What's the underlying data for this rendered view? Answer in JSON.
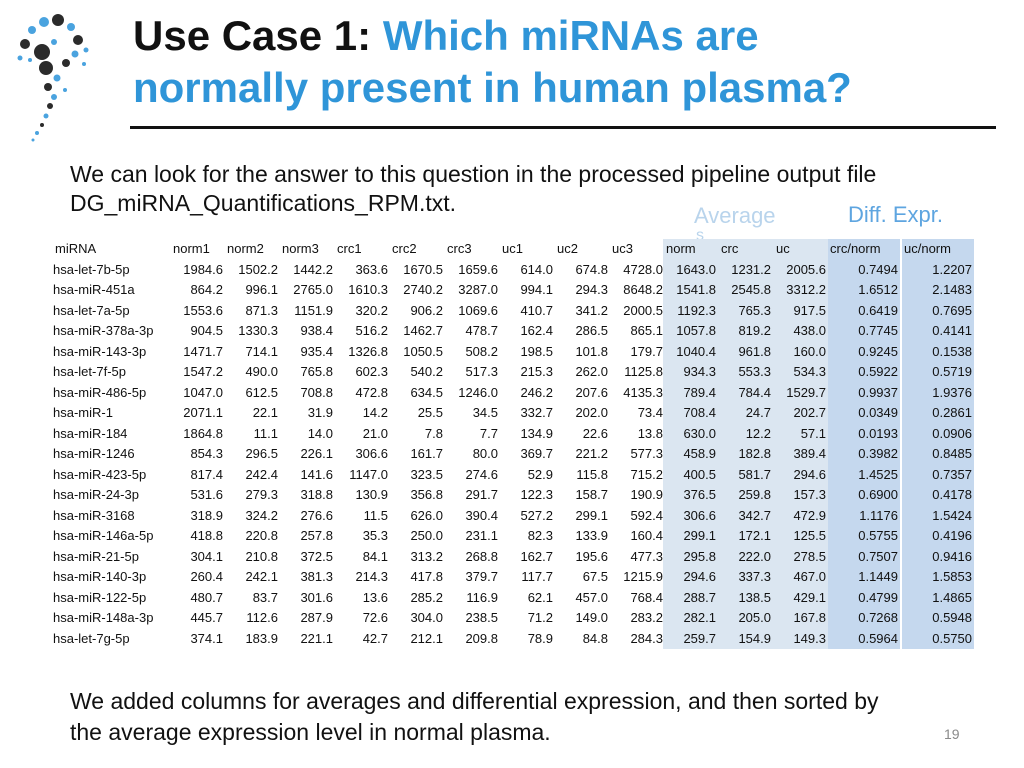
{
  "title": {
    "prefix": "Use Case 1:",
    "highlight_line1": "Which miRNAs are",
    "highlight_line2": "normally present in human plasma?"
  },
  "intro": {
    "line1": "We can look for the answer to this question in the processed pipeline output file",
    "line2": "DG_miRNA_Quantifications_RPM.txt."
  },
  "group_headers": {
    "average": "Average",
    "average_tail": "s",
    "diff": "Diff. Expr."
  },
  "table": {
    "headers": [
      "miRNA",
      "norm1",
      "norm2",
      "norm3",
      "crc1",
      "crc2",
      "crc3",
      "uc1",
      "uc2",
      "uc3",
      "norm",
      "crc",
      "uc",
      "crc/norm",
      "uc/norm"
    ],
    "rows": [
      [
        "hsa-let-7b-5p",
        "1984.6",
        "1502.2",
        "1442.2",
        "363.6",
        "1670.5",
        "1659.6",
        "614.0",
        "674.8",
        "4728.0",
        "1643.0",
        "1231.2",
        "2005.6",
        "0.7494",
        "1.2207"
      ],
      [
        "hsa-miR-451a",
        "864.2",
        "996.1",
        "2765.0",
        "1610.3",
        "2740.2",
        "3287.0",
        "994.1",
        "294.3",
        "8648.2",
        "1541.8",
        "2545.8",
        "3312.2",
        "1.6512",
        "2.1483"
      ],
      [
        "hsa-let-7a-5p",
        "1553.6",
        "871.3",
        "1151.9",
        "320.2",
        "906.2",
        "1069.6",
        "410.7",
        "341.2",
        "2000.5",
        "1192.3",
        "765.3",
        "917.5",
        "0.6419",
        "0.7695"
      ],
      [
        "hsa-miR-378a-3p",
        "904.5",
        "1330.3",
        "938.4",
        "516.2",
        "1462.7",
        "478.7",
        "162.4",
        "286.5",
        "865.1",
        "1057.8",
        "819.2",
        "438.0",
        "0.7745",
        "0.4141"
      ],
      [
        "hsa-miR-143-3p",
        "1471.7",
        "714.1",
        "935.4",
        "1326.8",
        "1050.5",
        "508.2",
        "198.5",
        "101.8",
        "179.7",
        "1040.4",
        "961.8",
        "160.0",
        "0.9245",
        "0.1538"
      ],
      [
        "hsa-let-7f-5p",
        "1547.2",
        "490.0",
        "765.8",
        "602.3",
        "540.2",
        "517.3",
        "215.3",
        "262.0",
        "1125.8",
        "934.3",
        "553.3",
        "534.3",
        "0.5922",
        "0.5719"
      ],
      [
        "hsa-miR-486-5p",
        "1047.0",
        "612.5",
        "708.8",
        "472.8",
        "634.5",
        "1246.0",
        "246.2",
        "207.6",
        "4135.3",
        "789.4",
        "784.4",
        "1529.7",
        "0.9937",
        "1.9376"
      ],
      [
        "hsa-miR-1",
        "2071.1",
        "22.1",
        "31.9",
        "14.2",
        "25.5",
        "34.5",
        "332.7",
        "202.0",
        "73.4",
        "708.4",
        "24.7",
        "202.7",
        "0.0349",
        "0.2861"
      ],
      [
        "hsa-miR-184",
        "1864.8",
        "11.1",
        "14.0",
        "21.0",
        "7.8",
        "7.7",
        "134.9",
        "22.6",
        "13.8",
        "630.0",
        "12.2",
        "57.1",
        "0.0193",
        "0.0906"
      ],
      [
        "hsa-miR-1246",
        "854.3",
        "296.5",
        "226.1",
        "306.6",
        "161.7",
        "80.0",
        "369.7",
        "221.2",
        "577.3",
        "458.9",
        "182.8",
        "389.4",
        "0.3982",
        "0.8485"
      ],
      [
        "hsa-miR-423-5p",
        "817.4",
        "242.4",
        "141.6",
        "1147.0",
        "323.5",
        "274.6",
        "52.9",
        "115.8",
        "715.2",
        "400.5",
        "581.7",
        "294.6",
        "1.4525",
        "0.7357"
      ],
      [
        "hsa-miR-24-3p",
        "531.6",
        "279.3",
        "318.8",
        "130.9",
        "356.8",
        "291.7",
        "122.3",
        "158.7",
        "190.9",
        "376.5",
        "259.8",
        "157.3",
        "0.6900",
        "0.4178"
      ],
      [
        "hsa-miR-3168",
        "318.9",
        "324.2",
        "276.6",
        "11.5",
        "626.0",
        "390.4",
        "527.2",
        "299.1",
        "592.4",
        "306.6",
        "342.7",
        "472.9",
        "1.1176",
        "1.5424"
      ],
      [
        "hsa-miR-146a-5p",
        "418.8",
        "220.8",
        "257.8",
        "35.3",
        "250.0",
        "231.1",
        "82.3",
        "133.9",
        "160.4",
        "299.1",
        "172.1",
        "125.5",
        "0.5755",
        "0.4196"
      ],
      [
        "hsa-miR-21-5p",
        "304.1",
        "210.8",
        "372.5",
        "84.1",
        "313.2",
        "268.8",
        "162.7",
        "195.6",
        "477.3",
        "295.8",
        "222.0",
        "278.5",
        "0.7507",
        "0.9416"
      ],
      [
        "hsa-miR-140-3p",
        "260.4",
        "242.1",
        "381.3",
        "214.3",
        "417.8",
        "379.7",
        "117.7",
        "67.5",
        "1215.9",
        "294.6",
        "337.3",
        "467.0",
        "1.1449",
        "1.5853"
      ],
      [
        "hsa-miR-122-5p",
        "480.7",
        "83.7",
        "301.6",
        "13.6",
        "285.2",
        "116.9",
        "62.1",
        "457.0",
        "768.4",
        "288.7",
        "138.5",
        "429.1",
        "0.4799",
        "1.4865"
      ],
      [
        "hsa-miR-148a-3p",
        "445.7",
        "112.6",
        "287.9",
        "72.6",
        "304.0",
        "238.5",
        "71.2",
        "149.0",
        "283.2",
        "282.1",
        "205.0",
        "167.8",
        "0.7268",
        "0.5948"
      ],
      [
        "hsa-let-7g-5p",
        "374.1",
        "183.9",
        "221.1",
        "42.7",
        "212.1",
        "209.8",
        "78.9",
        "84.8",
        "284.3",
        "259.7",
        "154.9",
        "149.3",
        "0.5964",
        "0.5750"
      ]
    ]
  },
  "footer": {
    "line1": "We added columns for averages and differential expression, and then sorted by",
    "line2": "the average expression level in normal plasma."
  },
  "page_number": "19",
  "colors": {
    "title_accent": "#2f95d8",
    "average_bg": "#dbe6f1",
    "diff_bg": "#c5d8ee",
    "logo_dark": "#2b2b2b",
    "logo_blue": "#4aa3df"
  },
  "icons": {
    "logo": "dotted-spiral-logo"
  }
}
